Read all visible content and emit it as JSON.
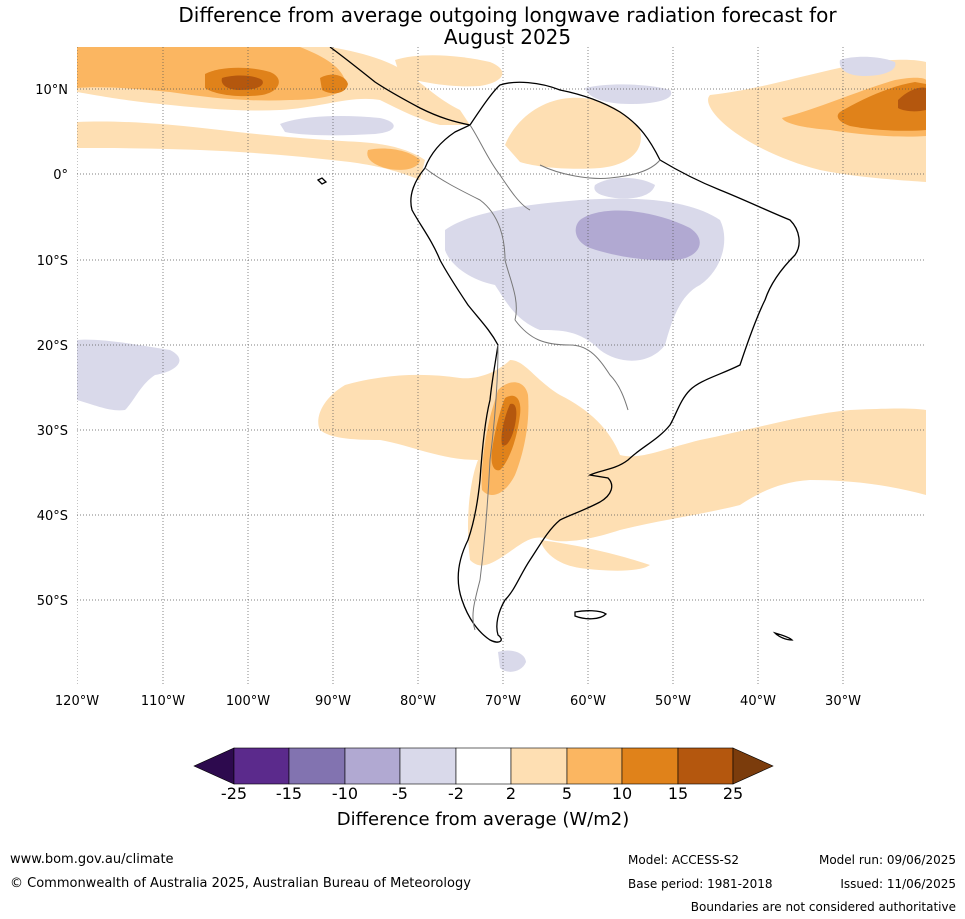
{
  "title": {
    "line1": "Difference from average outgoing longwave radiation forecast for",
    "line2": "August 2025"
  },
  "lat_labels": [
    "10°N",
    "0°",
    "10°S",
    "20°S",
    "30°S",
    "40°S",
    "50°S"
  ],
  "lon_labels": [
    "120°W",
    "110°W",
    "100°W",
    "90°W",
    "80°W",
    "70°W",
    "60°W",
    "50°W",
    "40°W",
    "30°W"
  ],
  "colorbar": {
    "ticks": [
      "-25",
      "-15",
      "-10",
      "-5",
      "-2",
      "2",
      "5",
      "10",
      "15",
      "25"
    ],
    "colors": {
      "lt_m25": "#2d0a4e",
      "m25_m15": "#5b2a8c",
      "m15_m10": "#8273b0",
      "m10_m5": "#b1a9d2",
      "m5_m2": "#d9d9ea",
      "m2_2": "#ffffff",
      "p2_5": "#fedfb3",
      "p5_10": "#fbb661",
      "p10_15": "#e0821a",
      "p15_25": "#b4570e",
      "gt_25": "#7b3c0c"
    },
    "label": "Difference from average (W/m2)"
  },
  "footer": {
    "website": "www.bom.gov.au/climate",
    "copyright": "© Commonwealth of Australia 2025, Australian Bureau of Meteorology",
    "model": "Model: ACCESS-S2",
    "base_period": "Base period: 1981-2018",
    "model_run": "Model run: 09/06/2025",
    "issued": "Issued: 11/06/2025",
    "disclaimer": "Boundaries are not considered authoritative"
  }
}
